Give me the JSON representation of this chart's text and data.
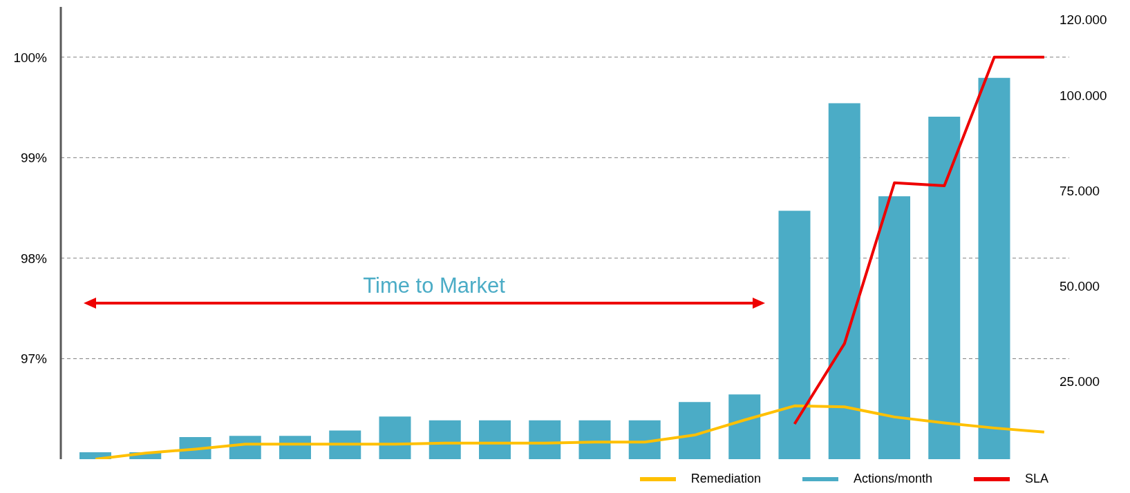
{
  "chart_data": {
    "type": "bar",
    "categories": [
      null,
      null,
      null,
      null,
      null,
      null,
      null,
      null,
      null,
      null,
      null,
      null,
      null,
      null,
      null,
      null,
      null,
      null,
      null,
      null
    ],
    "series": [
      {
        "name": "Remediation",
        "type": "line",
        "color": "#ffc000",
        "values": [
          96.0,
          96.06,
          96.1,
          96.15,
          96.15,
          96.15,
          96.15,
          96.16,
          96.16,
          96.16,
          96.17,
          96.17,
          96.24,
          96.39,
          96.53,
          96.52,
          96.42,
          96.36,
          96.31,
          96.27
        ]
      },
      {
        "name": "Actions/month",
        "color": "#4bacc6",
        "axis": "y2",
        "values": [
          6400,
          6400,
          10400,
          10700,
          10700,
          12100,
          15800,
          14800,
          14800,
          14800,
          14800,
          14800,
          19600,
          21600,
          69800,
          98000,
          73600,
          94500,
          104700,
          null
        ]
      },
      {
        "name": "SLA",
        "type": "line",
        "color": "#ee0000",
        "values": [
          null,
          null,
          null,
          null,
          null,
          null,
          null,
          null,
          null,
          null,
          null,
          null,
          null,
          null,
          96.35,
          97.15,
          98.75,
          98.72,
          100,
          100
        ]
      }
    ],
    "ylim": [
      96,
      100.5
    ],
    "yticks": [
      {
        "value": 97,
        "label": "97%"
      },
      {
        "value": 98,
        "label": "98%"
      },
      {
        "value": 99,
        "label": "99%"
      },
      {
        "value": 100,
        "label": "100%"
      }
    ],
    "y2lim": [
      4600,
      123300
    ],
    "y2ticks": [
      {
        "value": 25000,
        "label": "25.000"
      },
      {
        "value": 50000,
        "label": "50.000"
      },
      {
        "value": 75000,
        "label": "75.000"
      },
      {
        "value": 100000,
        "label": "100.000"
      },
      {
        "value": 120000,
        "label": "120.000"
      }
    ],
    "annotations": [
      "Time to Market"
    ],
    "grid": "y",
    "legend": "bottom right",
    "marker": "none",
    "line_style": "solid"
  }
}
